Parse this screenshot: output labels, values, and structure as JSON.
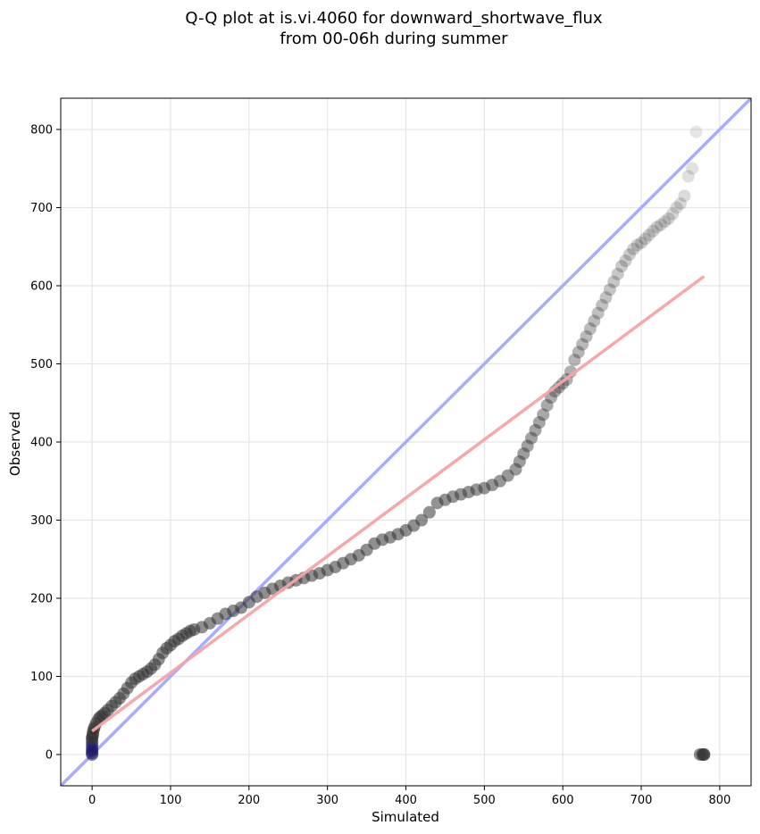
{
  "chart_data": {
    "type": "scatter",
    "title": "Q-Q plot at is.vi.4060 for downward_shortwave_flux",
    "subtitle": "from 00-06h during summer",
    "xlabel": "Simulated",
    "ylabel": "Observed",
    "xlim": [
      -40,
      840
    ],
    "ylim": [
      -40,
      840
    ],
    "xticks": [
      0,
      100,
      200,
      300,
      400,
      500,
      600,
      700,
      800
    ],
    "yticks": [
      0,
      100,
      200,
      300,
      400,
      500,
      600,
      700,
      800
    ],
    "grid": true,
    "colors": {
      "points": "#333333",
      "identity_line": "#aaaaff",
      "fit_line": "#f7a3a7",
      "low_points": "#1a1a66"
    },
    "series": [
      {
        "type": "scatter",
        "x": [
          0,
          0,
          0,
          0,
          0,
          0,
          0,
          0,
          1,
          1,
          2,
          3,
          5,
          8,
          10,
          13,
          16,
          20,
          25,
          30,
          35,
          40,
          45,
          50,
          55,
          60,
          65,
          70,
          75,
          80,
          85,
          90,
          95,
          100,
          105,
          110,
          115,
          120,
          125,
          130,
          140,
          150,
          160,
          170,
          180,
          190,
          200,
          210,
          220,
          230,
          240,
          250,
          260,
          270,
          280,
          290,
          300,
          310,
          320,
          330,
          340,
          350,
          360,
          370,
          380,
          390,
          400,
          410,
          420,
          430,
          440,
          450,
          460,
          470,
          480,
          490,
          500,
          510,
          520,
          530,
          540,
          545,
          550,
          555,
          560,
          565,
          570,
          575,
          580,
          585,
          590,
          595,
          600,
          605,
          610,
          615,
          620,
          625,
          630,
          635,
          640,
          645,
          650,
          655,
          660,
          665,
          670,
          675,
          680,
          685,
          690,
          695,
          700,
          705,
          710,
          715,
          720,
          725,
          730,
          735,
          740,
          745,
          750,
          755,
          760,
          765,
          770,
          775,
          778,
          780,
          780
        ],
        "y": [
          0,
          2,
          5,
          8,
          12,
          16,
          20,
          22,
          25,
          28,
          32,
          35,
          40,
          45,
          48,
          50,
          53,
          57,
          62,
          67,
          72,
          78,
          85,
          92,
          97,
          100,
          103,
          106,
          110,
          115,
          122,
          130,
          136,
          140,
          145,
          148,
          152,
          155,
          158,
          160,
          163,
          168,
          174,
          180,
          184,
          188,
          195,
          202,
          207,
          212,
          216,
          220,
          223,
          226,
          229,
          232,
          236,
          240,
          245,
          250,
          255,
          262,
          270,
          275,
          278,
          282,
          287,
          293,
          300,
          310,
          322,
          326,
          330,
          333,
          336,
          339,
          341,
          345,
          350,
          357,
          365,
          375,
          385,
          395,
          405,
          415,
          425,
          435,
          447,
          457,
          465,
          470,
          475,
          480,
          490,
          505,
          515,
          525,
          535,
          545,
          555,
          565,
          575,
          585,
          595,
          605,
          615,
          625,
          632,
          640,
          647,
          652,
          655,
          660,
          665,
          670,
          675,
          678,
          682,
          686,
          692,
          700,
          705,
          715,
          740,
          750,
          797,
          0,
          0,
          0,
          0
        ],
        "alpha_mode": "fade-with-value"
      },
      {
        "type": "line",
        "name": "",
        "x": [
          -40,
          840
        ],
        "y": [
          -40,
          840
        ]
      },
      {
        "type": "line",
        "name": "",
        "x": [
          0,
          780
        ],
        "y": [
          30,
          612
        ]
      }
    ]
  }
}
